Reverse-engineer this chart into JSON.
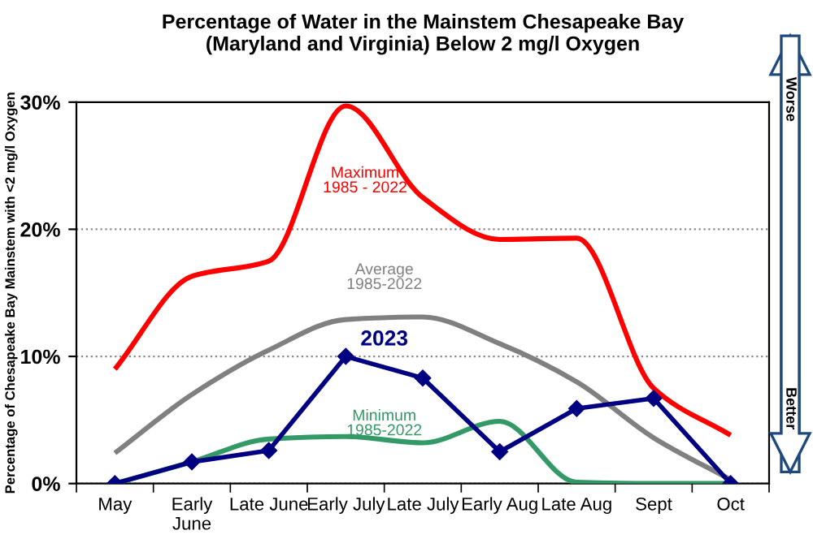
{
  "chart_data": {
    "type": "line",
    "title": "Percentage of Water in the Mainstem Chesapeake Bay\n(Maryland and Virginia) Below 2 mg/l Oxygen",
    "ylabel": "Percentage of Chesapeake Bay Mainstem with <2 mg/l Oxygen",
    "categories": [
      "May",
      "Early\nJune",
      "Late June",
      "Early July",
      "Late July",
      "Early Aug",
      "Late Aug",
      "Sept",
      "Oct"
    ],
    "series": [
      {
        "name": "Maximum\n1985 - 2022",
        "color": "#ff0000",
        "marker": "none",
        "values": [
          9,
          16.3,
          17.5,
          29.7,
          22.5,
          19.2,
          19.3,
          7.5,
          3.8
        ]
      },
      {
        "name": "Average\n1985-2022",
        "color": "#808080",
        "marker": "none",
        "values": [
          2.4,
          7,
          10.5,
          12.9,
          13.1,
          11,
          8,
          3.6,
          0.3
        ]
      },
      {
        "name": "Minimum\n1985-2022",
        "color": "#339966",
        "marker": "none",
        "values": [
          0,
          1.7,
          3.5,
          3.7,
          3.2,
          4.9,
          0.1,
          0,
          0
        ]
      },
      {
        "name": "2023",
        "color": "#000080",
        "marker": "diamond",
        "values": [
          0,
          1.7,
          2.6,
          10,
          8.3,
          2.5,
          5.9,
          6.7,
          0
        ]
      }
    ],
    "ylim": [
      0,
      30
    ],
    "yticks": [
      {
        "value": 0,
        "label": "0%"
      },
      {
        "value": 10,
        "label": "10%"
      },
      {
        "value": 20,
        "label": "20%"
      },
      {
        "value": 30,
        "label": "30%"
      }
    ],
    "grid": "y",
    "legend": false,
    "annotations": [
      "Worse",
      "Better"
    ]
  }
}
